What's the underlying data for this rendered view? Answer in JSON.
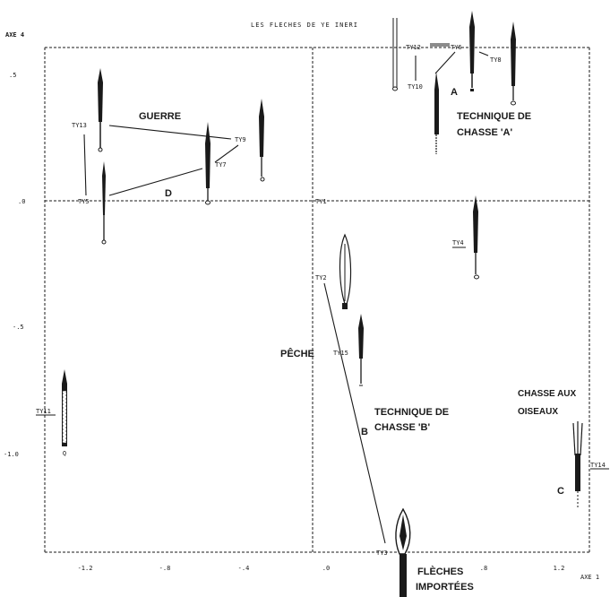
{
  "title": "LES FLECHES DE YE INERI",
  "axes": {
    "y_name": "AXE 4",
    "x_name": "AXE 1",
    "y_ticks": [
      ".5",
      ".0",
      "-.5",
      "-1.0"
    ],
    "x_ticks": [
      "-1.2",
      "-.8",
      "-.4",
      ".0",
      ".4",
      ".8",
      "1.2"
    ]
  },
  "points": [
    {
      "label": "TY1"
    },
    {
      "label": "TY2"
    },
    {
      "label": "TY3"
    },
    {
      "label": "TY4"
    },
    {
      "label": "TY5"
    },
    {
      "label": "TY6"
    },
    {
      "label": "TY7"
    },
    {
      "label": "TY8"
    },
    {
      "label": "TY9"
    },
    {
      "label": "TY10"
    },
    {
      "label": "TY11"
    },
    {
      "label": "TY12"
    },
    {
      "label": "TY13"
    },
    {
      "label": "TY14"
    },
    {
      "label": "TY15"
    }
  ],
  "groups": {
    "guerre": "GUERRE",
    "technique_a_line1": "TECHNIQUE DE",
    "technique_a_line2": "CHASSE 'A'",
    "technique_b_line1": "TECHNIQUE DE",
    "technique_b_line2": "CHASSE 'B'",
    "peche": "PÊCHE",
    "oiseaux_line1": "CHASSE AUX",
    "oiseaux_line2": "OISEAUX",
    "importees_line1": "FLÈCHES",
    "importees_line2": "IMPORTÉES"
  },
  "letters": {
    "a": "A",
    "b": "B",
    "c": "C",
    "d": "D"
  },
  "colors": {
    "ink": "#1a1a1a",
    "paper": "#ffffff"
  }
}
